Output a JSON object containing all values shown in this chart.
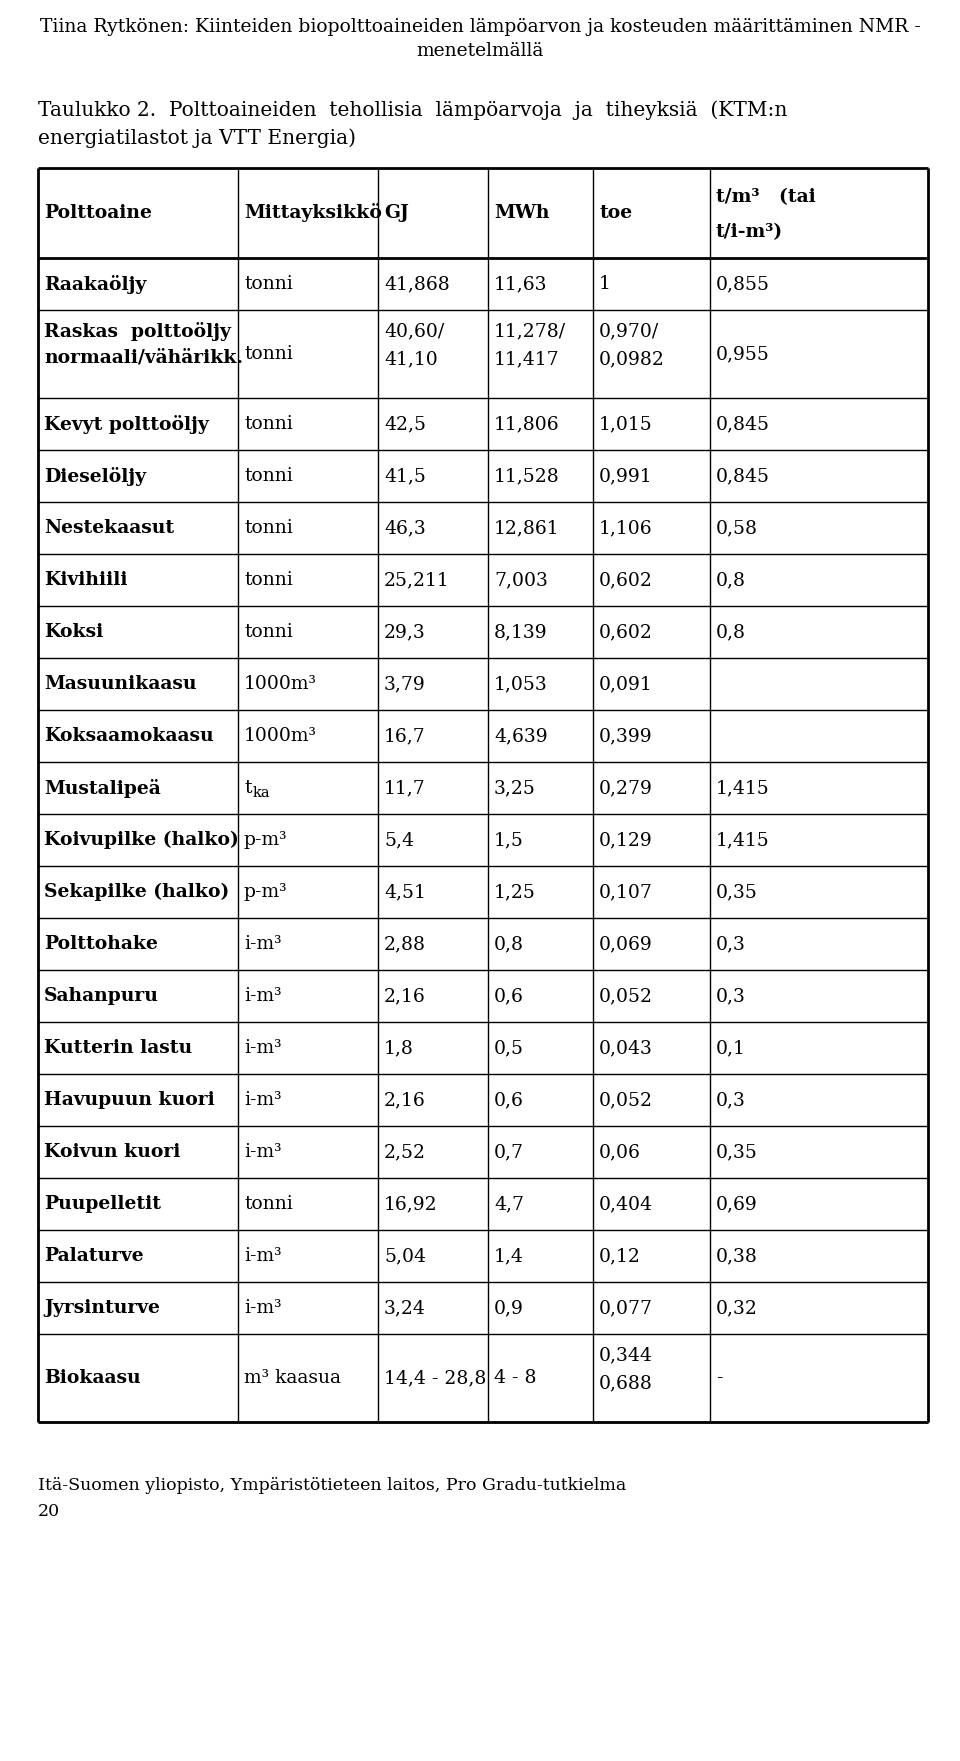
{
  "page_title_line1": "Tiina Rytkönen: Kiinteiden biopolttoaineiden lämpöarvon ja kosteuden määrittäminen NMR -",
  "page_title_line2": "menetelmällä",
  "table_title_line1": "Taulukko 2.  Polttoaineiden  tehollisia  lämpöarvoja  ja  tiheyksiä  (KTM:n",
  "table_title_line2": "energiatilastot ja VTT Energia)",
  "footer_line1": "Itä-Suomen yliopisto, Ympäristötieteen laitos, Pro Gradu-tutkielma",
  "footer_line2": "20",
  "col_headers": [
    "Polttoaine",
    "Mittayksikkö",
    "GJ",
    "MWh",
    "toe",
    "t/m³   (tai",
    "t/i-m³)"
  ],
  "rows": [
    {
      "col0": "Raakaöljy",
      "col0b": "",
      "col1": "tonni",
      "col2": "41,868",
      "col3": "11,63",
      "col4": "1",
      "col5": "0,855"
    },
    {
      "col0": "Raskas  polttoöljy",
      "col0b": "normaali/vähärikk.",
      "col1": "tonni",
      "col2_a": "40,60/",
      "col2_b": "41,10",
      "col3_a": "11,278/",
      "col3_b": "11,417",
      "col4_a": "0,970/",
      "col4_b": "0,0982",
      "col5": "0,955",
      "col2": "",
      "col3": "",
      "col4": ""
    },
    {
      "col0": "Kevyt polttoöljy",
      "col0b": "",
      "col1": "tonni",
      "col2": "42,5",
      "col3": "11,806",
      "col4": "1,015",
      "col5": "0,845"
    },
    {
      "col0": "Dieselöljy",
      "col0b": "",
      "col1": "tonni",
      "col2": "41,5",
      "col3": "11,528",
      "col4": "0,991",
      "col5": "0,845"
    },
    {
      "col0": "Nestekaasut",
      "col0b": "",
      "col1": "tonni",
      "col2": "46,3",
      "col3": "12,861",
      "col4": "1,106",
      "col5": "0,58"
    },
    {
      "col0": "Kivihiili",
      "col0b": "",
      "col1": "tonni",
      "col2": "25,211",
      "col3": "7,003",
      "col4": "0,602",
      "col5": "0,8"
    },
    {
      "col0": "Koksi",
      "col0b": "",
      "col1": "tonni",
      "col2": "29,3",
      "col3": "8,139",
      "col4": "0,602",
      "col5": "0,8"
    },
    {
      "col0": "Masuunikaasu",
      "col0b": "",
      "col1": "1000m³",
      "col2": "3,79",
      "col3": "1,053",
      "col4": "0,091",
      "col5": ""
    },
    {
      "col0": "Koksaamokaasu",
      "col0b": "",
      "col1": "1000m³",
      "col2": "16,7",
      "col3": "4,639",
      "col4": "0,399",
      "col5": ""
    },
    {
      "col0": "Mustalipeä",
      "col0b": "",
      "col1_special": "tka",
      "col2": "11,7",
      "col3": "3,25",
      "col4": "0,279",
      "col5": "1,415"
    },
    {
      "col0": "Koivupilke (halko)",
      "col0b": "",
      "col1": "p-m³",
      "col2": "5,4",
      "col3": "1,5",
      "col4": "0,129",
      "col5": "1,415"
    },
    {
      "col0": "Sekapilke (halko)",
      "col0b": "",
      "col1": "p-m³",
      "col2": "4,51",
      "col3": "1,25",
      "col4": "0,107",
      "col5": "0,35"
    },
    {
      "col0": "Polttohake",
      "col0b": "",
      "col1": "i-m³",
      "col2": "2,88",
      "col3": "0,8",
      "col4": "0,069",
      "col5": "0,3"
    },
    {
      "col0": "Sahanpuru",
      "col0b": "",
      "col1": "i-m³",
      "col2": "2,16",
      "col3": "0,6",
      "col4": "0,052",
      "col5": "0,3"
    },
    {
      "col0": "Kutterin lastu",
      "col0b": "",
      "col1": "i-m³",
      "col2": "1,8",
      "col3": "0,5",
      "col4": "0,043",
      "col5": "0,1"
    },
    {
      "col0": "Havupuun kuori",
      "col0b": "",
      "col1": "i-m³",
      "col2": "2,16",
      "col3": "0,6",
      "col4": "0,052",
      "col5": "0,3"
    },
    {
      "col0": "Koivun kuori",
      "col0b": "",
      "col1": "i-m³",
      "col2": "2,52",
      "col3": "0,7",
      "col4": "0,06",
      "col5": "0,35"
    },
    {
      "col0": "Puupelletit",
      "col0b": "",
      "col1": "tonni",
      "col2": "16,92",
      "col3": "4,7",
      "col4": "0,404",
      "col5": "0,69"
    },
    {
      "col0": "Palaturve",
      "col0b": "",
      "col1": "i-m³",
      "col2": "5,04",
      "col3": "1,4",
      "col4": "0,12",
      "col5": "0,38"
    },
    {
      "col0": "Jyrsinturve",
      "col0b": "",
      "col1": "i-m³",
      "col2": "3,24",
      "col3": "0,9",
      "col4": "0,077",
      "col5": "0,32"
    },
    {
      "col0": "Biokaasu",
      "col0b": "",
      "col1": "m³ kaasua",
      "col2": "14,4 - 28,8",
      "col3": "4 - 8",
      "col4_a": "0,344",
      "col4_b": "0,688",
      "col4": "",
      "col5": "-"
    }
  ],
  "bg_color": "#ffffff",
  "text_color": "#000000"
}
